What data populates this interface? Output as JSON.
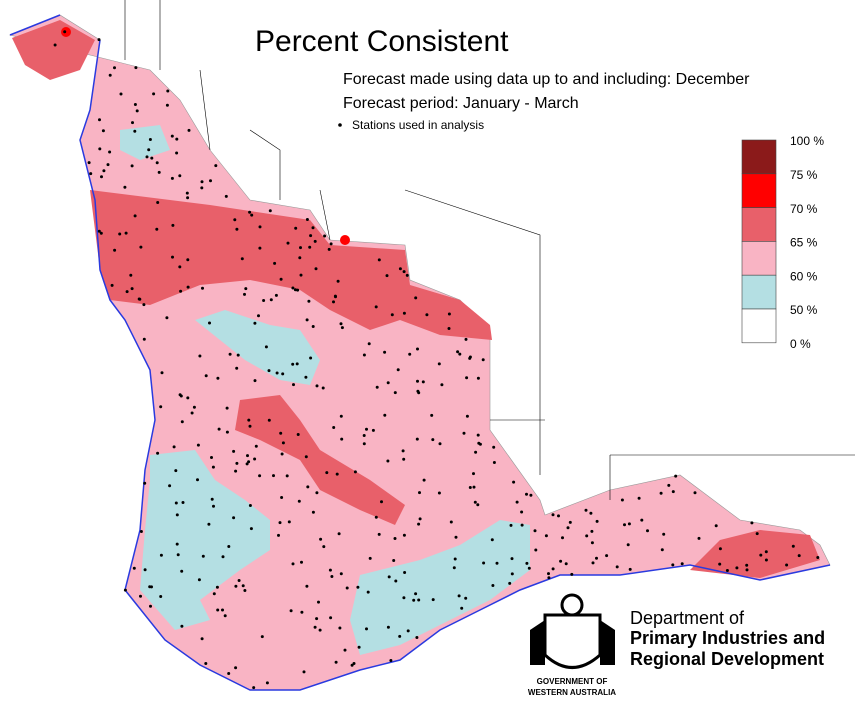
{
  "title": "Percent Consistent",
  "subtitle_lines": [
    "Forecast made using data up to and including: December",
    "Forecast period: January - March"
  ],
  "stations_label": "Stations used in analysis",
  "legend": {
    "labels": [
      "100 %",
      "75 %",
      "70 %",
      "65 %",
      "60 %",
      "50 %",
      "0 %"
    ],
    "colors": [
      "#8b1a1a",
      "#ff0000",
      "#e8606a",
      "#f9b4c4",
      "#b4dfe3",
      "#ffffff"
    ]
  },
  "logo": {
    "department": [
      "Department of",
      "Primary Industries and",
      "Regional Development"
    ],
    "government": [
      "GOVERNMENT OF",
      "WESTERN AUSTRALIA"
    ]
  }
}
